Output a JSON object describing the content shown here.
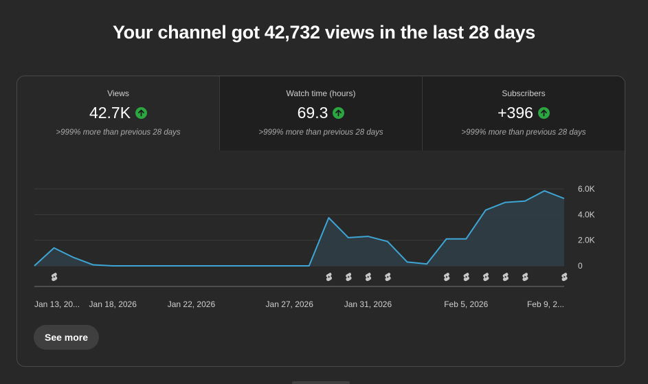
{
  "headline": "Your channel got 42,732 views in the last 28 days",
  "metrics": [
    {
      "label": "Views",
      "value": "42.7K",
      "comparison": ">999% more than previous 28 days",
      "trend_icon": "arrow-up-icon"
    },
    {
      "label": "Watch time (hours)",
      "value": "69.3",
      "comparison": ">999% more than previous 28 days",
      "trend_icon": "arrow-up-icon"
    },
    {
      "label": "Subscribers",
      "value": "+396",
      "comparison": ">999% more than previous 28 days",
      "trend_icon": "arrow-up-icon"
    }
  ],
  "chart_data": {
    "type": "area",
    "series": [
      {
        "values": [
          0,
          1400,
          650,
          80,
          0,
          0,
          0,
          0,
          0,
          0,
          0,
          0,
          0,
          0,
          0,
          3750,
          2200,
          2300,
          1900,
          300,
          150,
          2100,
          2100,
          4350,
          4950,
          5050,
          5850,
          5250
        ]
      }
    ],
    "x_tick_labels": [
      "Jan 13, 20...",
      "Jan 18, 2026",
      "Jan 22, 2026",
      "Jan 27, 2026",
      "Jan 31, 2026",
      "Feb 5, 2026",
      "Feb 9, 2..."
    ],
    "x_tick_indices": [
      0,
      4,
      8,
      13,
      17,
      22,
      26
    ],
    "y_tick_labels": [
      "0",
      "2.0K",
      "4.0K",
      "6.0K"
    ],
    "y_ticks": [
      0,
      2000,
      4000,
      6000
    ],
    "ylim": [
      0,
      6000
    ],
    "grid": true,
    "short_markers": [
      1,
      15,
      16,
      17,
      18,
      21,
      22,
      23,
      24,
      25,
      27
    ],
    "colors": {
      "line": "#3ea6d6",
      "fill": "#2f3e47",
      "grid": "#3d3d3d",
      "marker": "#c8c8c8"
    }
  },
  "see_more_label": "See more"
}
